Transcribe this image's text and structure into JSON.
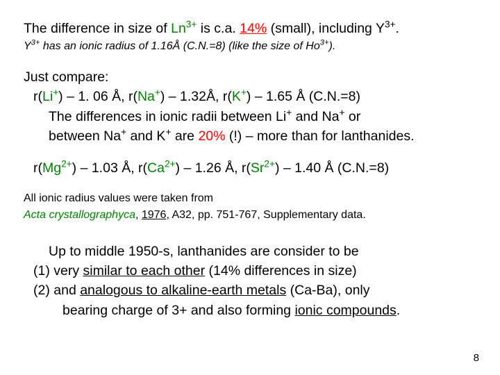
{
  "l1a": "The difference in size of  ",
  "l1b": "Ln",
  "l1b_sup": "3+",
  "l1c": " is c.a. ",
  "l1d": "14%",
  "l1e": " (small), including Y",
  "l1e_sup": "3+",
  "l1f": ".",
  "l2a": "Y",
  "l2a_sup": "3+",
  "l2b": " has an ionic radius of 1.16Å (C.N.=8) (like the size of Ho",
  "l2b_sup": "3+",
  "l2c": ").",
  "l3": "Just compare:",
  "l4a": "r(",
  "l4b": "Li",
  "l4b_sup": "+",
  "l4c": ") – 1. 06 Å,  r(",
  "l4d": "Na",
  "l4d_sup": "+",
  "l4e": ") – 1.32Å,  r(",
  "l4f": "K",
  "l4f_sup": "+",
  "l4g": ") – 1.65 Å  (C.N.=8)",
  "l5a": "The differences in ionic radii between Li",
  "l5a_sup": "+",
  "l5b": " and Na",
  "l5b_sup": "+",
  "l5c": " or",
  "l6a": "between Na",
  "l6a_sup": "+",
  "l6b": " and K",
  "l6b_sup": "+",
  "l6c": " are ",
  "l6d": "20%",
  "l6e": " (!) – more than for lanthanides.",
  "l7a": "r(",
  "l7b": "Mg",
  "l7b_sup": "2+",
  "l7c": ") – 1.03 Å,  r(",
  "l7d": "Ca",
  "l7d_sup": "2+",
  "l7e": ") – 1.26 Å,  r(",
  "l7f": "Sr",
  "l7f_sup": "2+",
  "l7g": ") – 1.40 Å  (C.N.=8)",
  "l8": "All ionic radius values were taken from",
  "l9a": "Acta crystallographyca",
  "l9b": ", ",
  "l9c": "1976",
  "l9d": ", A32, pp. 751-767, Supplementary data.",
  "l10": "Up to middle 1950-s, lanthanides are consider to be",
  "l11a": "(1) very ",
  "l11b": "similar to each other",
  "l11c": " (14% differences in size)",
  "l12a": "(2) and ",
  "l12b": "analogous to alkaline-earth metals",
  "l12c": " (Ca-Ba), only",
  "l13a": "bearing charge of 3+ and also forming ",
  "l13b": "ionic compounds",
  "l13c": ".",
  "page": "8"
}
